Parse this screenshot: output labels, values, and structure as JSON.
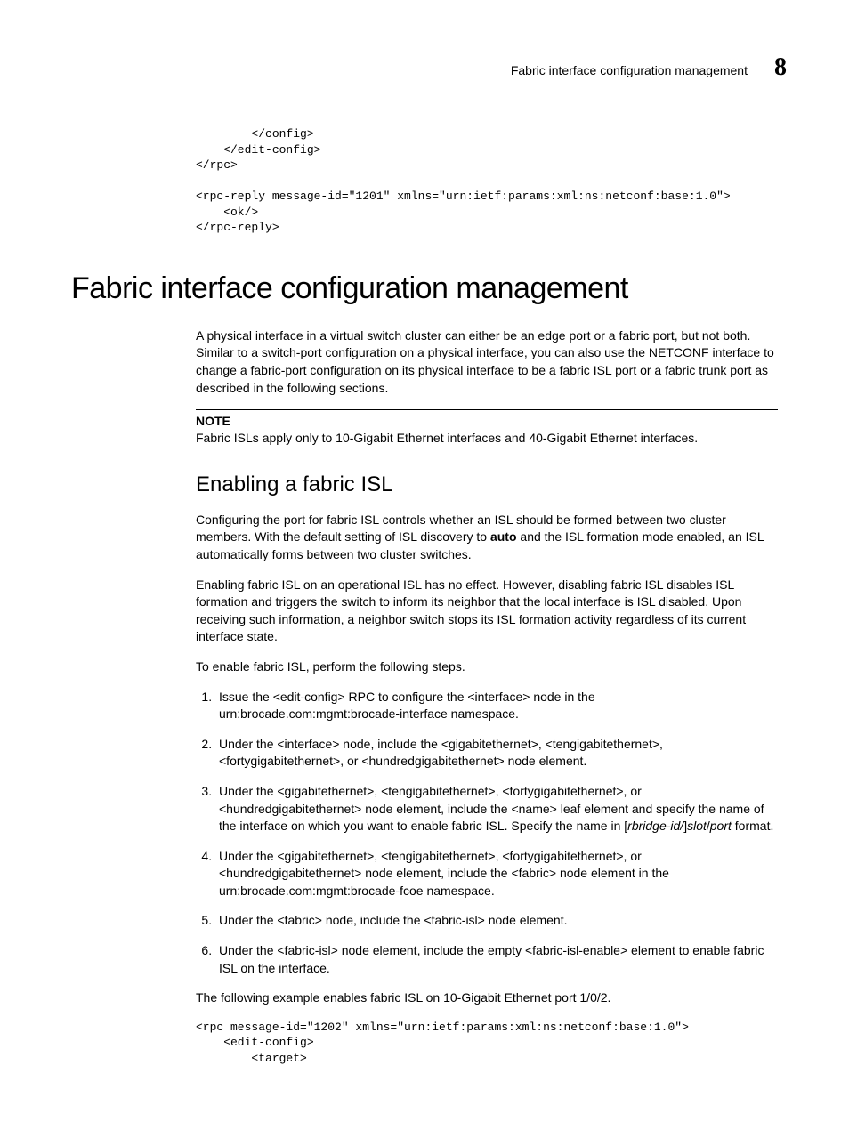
{
  "header": {
    "running_title": "Fabric interface configuration management",
    "chapter_number": "8"
  },
  "code_top": "        </config>\n    </edit-config>\n</rpc>\n\n<rpc-reply message-id=\"1201\" xmlns=\"urn:ietf:params:xml:ns:netconf:base:1.0\">\n    <ok/>\n</rpc-reply>",
  "h1": "Fabric interface configuration management",
  "intro_para": "A physical interface in a virtual switch cluster can either be an edge port or a fabric port, but not both. Similar to a switch-port configuration on a physical interface, you can also use the NETCONF interface to change a fabric-port configuration on its physical interface to be a fabric ISL port or a fabric trunk port as described in the following sections.",
  "note": {
    "label": "NOTE",
    "text": "Fabric ISLs apply only to 10-Gigabit Ethernet interfaces and 40-Gigabit Ethernet interfaces."
  },
  "h2": "Enabling a fabric ISL",
  "p1_a": "Configuring the port for fabric ISL controls whether an ISL should be formed between two cluster members. With the default setting of ISL discovery to ",
  "p1_bold": "auto",
  "p1_b": " and the ISL formation mode enabled, an ISL automatically forms between two cluster switches.",
  "p2": "Enabling fabric ISL on an operational ISL has no effect. However, disabling fabric ISL disables ISL formation and triggers the switch to inform its neighbor that the local interface is ISL disabled. Upon receiving such information, a neighbor switch stops its ISL formation activity regardless of its current interface state.",
  "p3": "To enable fabric ISL, perform the following steps.",
  "steps": {
    "s1": "Issue the <edit-config> RPC to configure the <interface> node in the urn:brocade.com:mgmt:brocade-interface namespace.",
    "s2": "Under the <interface> node, include the <gigabitethernet>, <tengigabitethernet>, <fortygigabitethernet>, or <hundredgigabitethernet> node element.",
    "s3_a": "Under the <gigabitethernet>, <tengigabitethernet>, <fortygigabitethernet>, or <hundredgigabitethernet> node element, include the <name> leaf element and specify the name of the interface on which you want to enable fabric ISL. Specify the name in [",
    "s3_i1": "rbridge-id/",
    "s3_b": "]",
    "s3_i2": "slot",
    "s3_c": "/",
    "s3_i3": "port",
    "s3_d": " format.",
    "s4": "Under the <gigabitethernet>, <tengigabitethernet>, <fortygigabitethernet>, or <hundredgigabitethernet> node element, include the <fabric> node element in the urn:brocade.com:mgmt:brocade-fcoe namespace.",
    "s5": "Under the <fabric> node, include the <fabric-isl> node element.",
    "s6": "Under the <fabric-isl> node element, include the empty <fabric-isl-enable> element to enable fabric ISL on the interface."
  },
  "p4": "The following example enables fabric ISL on 10-Gigabit Ethernet port 1/0/2.",
  "code_bottom": "<rpc message-id=\"1202\" xmlns=\"urn:ietf:params:xml:ns:netconf:base:1.0\">\n    <edit-config>\n        <target>"
}
